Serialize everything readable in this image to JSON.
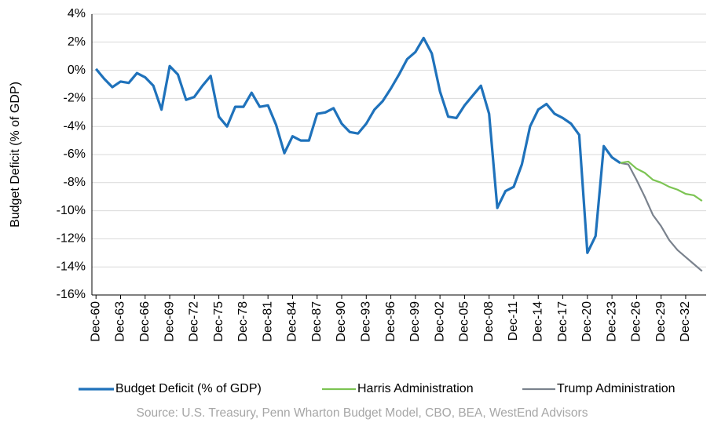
{
  "chart_data": {
    "type": "line",
    "y_label": "Budget Deficit (% of GDP)",
    "source": "Source: U.S. Treasury, Penn Wharton Budget Model, CBO, BEA, WestEnd Advisors",
    "categories": [
      "Dec-60",
      null,
      null,
      "Dec-63",
      null,
      null,
      "Dec-66",
      null,
      null,
      "Dec-69",
      null,
      null,
      "Dec-72",
      null,
      null,
      "Dec-75",
      null,
      null,
      "Dec-78",
      null,
      null,
      "Dec-81",
      null,
      null,
      "Dec-84",
      null,
      null,
      "Dec-87",
      null,
      null,
      "Dec-90",
      null,
      null,
      "Dec-93",
      null,
      null,
      "Dec-96",
      null,
      null,
      "Dec-99",
      null,
      null,
      "Dec-02",
      null,
      null,
      "Dec-05",
      null,
      null,
      "Dec-08",
      null,
      null,
      "Dec-11",
      null,
      null,
      "Dec-14",
      null,
      null,
      "Dec-17",
      null,
      null,
      "Dec-20",
      null,
      null,
      "Dec-23",
      null,
      null,
      "Dec-26",
      null,
      null,
      "Dec-29",
      null,
      null,
      "Dec-32",
      null,
      null
    ],
    "series": [
      {
        "name": "Budget Deficit (% of GDP)",
        "color": "#1f72bb",
        "width": 3.2,
        "values": [
          0.1,
          -0.6,
          -1.2,
          -0.8,
          -0.9,
          -0.2,
          -0.5,
          -1.1,
          -2.8,
          0.3,
          -0.3,
          -2.1,
          -1.9,
          -1.1,
          -0.4,
          -3.3,
          -4.0,
          -2.6,
          -2.6,
          -1.6,
          -2.6,
          -2.5,
          -3.9,
          -5.9,
          -4.7,
          -5.0,
          -5.0,
          -3.1,
          -3.0,
          -2.7,
          -3.8,
          -4.4,
          -4.5,
          -3.8,
          -2.8,
          -2.2,
          -1.3,
          -0.3,
          0.8,
          1.3,
          2.3,
          1.2,
          -1.5,
          -3.3,
          -3.4,
          -2.5,
          -1.8,
          -1.1,
          -3.1,
          -9.8,
          -8.6,
          -8.3,
          -6.7,
          -4.0,
          -2.8,
          -2.4,
          -3.1,
          -3.4,
          -3.8,
          -4.6,
          -13.0,
          -11.8,
          -5.4,
          -6.2,
          -6.6,
          null,
          null,
          null,
          null,
          null,
          null,
          null,
          null,
          null,
          null
        ]
      },
      {
        "name": "Harris Administration",
        "color": "#7cc453",
        "width": 2.2,
        "values": [
          null,
          null,
          null,
          null,
          null,
          null,
          null,
          null,
          null,
          null,
          null,
          null,
          null,
          null,
          null,
          null,
          null,
          null,
          null,
          null,
          null,
          null,
          null,
          null,
          null,
          null,
          null,
          null,
          null,
          null,
          null,
          null,
          null,
          null,
          null,
          null,
          null,
          null,
          null,
          null,
          null,
          null,
          null,
          null,
          null,
          null,
          null,
          null,
          null,
          null,
          null,
          null,
          null,
          null,
          null,
          null,
          null,
          null,
          null,
          null,
          null,
          null,
          null,
          null,
          -6.6,
          -6.5,
          -7.0,
          -7.3,
          -7.8,
          -8.0,
          -8.3,
          -8.5,
          -8.8,
          -8.9,
          -9.3
        ]
      },
      {
        "name": "Trump Administration",
        "color": "#7a828d",
        "width": 2.2,
        "values": [
          null,
          null,
          null,
          null,
          null,
          null,
          null,
          null,
          null,
          null,
          null,
          null,
          null,
          null,
          null,
          null,
          null,
          null,
          null,
          null,
          null,
          null,
          null,
          null,
          null,
          null,
          null,
          null,
          null,
          null,
          null,
          null,
          null,
          null,
          null,
          null,
          null,
          null,
          null,
          null,
          null,
          null,
          null,
          null,
          null,
          null,
          null,
          null,
          null,
          null,
          null,
          null,
          null,
          null,
          null,
          null,
          null,
          null,
          null,
          null,
          null,
          null,
          null,
          null,
          -6.6,
          -6.7,
          -7.8,
          -9.0,
          -10.3,
          -11.1,
          -12.1,
          -12.8,
          -13.3,
          -13.8,
          -14.3
        ]
      }
    ],
    "ylim": [
      -16,
      4
    ],
    "yticks": [
      {
        "value": -16,
        "label": "-16%"
      },
      {
        "value": -14,
        "label": "-14%"
      },
      {
        "value": -12,
        "label": "-12%"
      },
      {
        "value": -10,
        "label": "-10%"
      },
      {
        "value": -8,
        "label": "-8%"
      },
      {
        "value": -6,
        "label": "-6%"
      },
      {
        "value": -4,
        "label": "-4%"
      },
      {
        "value": -2,
        "label": "-2%"
      },
      {
        "value": 0,
        "label": "0%"
      },
      {
        "value": 2,
        "label": "2%"
      },
      {
        "value": 4,
        "label": "4%"
      }
    ],
    "grid": true,
    "legend": "bottom"
  }
}
